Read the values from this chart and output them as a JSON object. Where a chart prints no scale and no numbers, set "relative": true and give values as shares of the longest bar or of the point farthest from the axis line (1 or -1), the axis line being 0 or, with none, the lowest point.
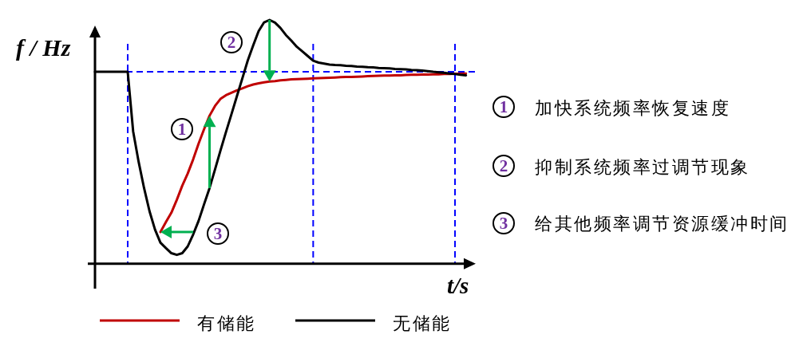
{
  "chart_data": {
    "type": "line",
    "relative": true,
    "xlabel": "t/s",
    "ylabel": "f / Hz",
    "legend": "bottom",
    "grid": "x",
    "categories": [
      null,
      null,
      null,
      null,
      null,
      null,
      null,
      null,
      null,
      null,
      null,
      null,
      null,
      null,
      null,
      null,
      null,
      null,
      null,
      null,
      null,
      null,
      null,
      null,
      null,
      null,
      null,
      null,
      null,
      null,
      null,
      null,
      null,
      null,
      null,
      null,
      null,
      null,
      null,
      null,
      null,
      null,
      null,
      null,
      null,
      null,
      null,
      null,
      null,
      null,
      null,
      null,
      null,
      null,
      null,
      null,
      null,
      null,
      null,
      null,
      null,
      null,
      null,
      null,
      null,
      null,
      null,
      null,
      null
    ],
    "series": [
      {
        "name": "有储能",
        "color": "#c00000",
        "values": [
          null,
          null,
          null,
          null,
          null,
          null,
          null,
          null,
          null,
          null,
          null,
          null,
          0.13,
          0.171,
          0.209,
          0.262,
          0.32,
          0.37,
          0.428,
          0.493,
          0.552,
          0.607,
          0.647,
          0.676,
          0.691,
          0.701,
          0.711,
          0.719,
          0.728,
          0.735,
          0.74,
          0.744,
          0.747,
          0.749,
          0.752,
          0.754,
          0.756,
          0.757,
          0.758,
          0.759,
          0.76,
          0.761,
          0.762,
          0.763,
          0.764,
          0.765,
          0.766,
          0.766,
          0.767,
          0.768,
          0.769,
          0.77,
          0.771,
          0.772,
          0.772,
          0.773,
          0.773,
          0.774,
          0.775,
          0.775,
          0.776,
          0.776,
          0.777,
          0.777,
          0.778,
          0.778,
          0.779,
          0.779,
          0.78
        ]
      },
      {
        "name": "无储能",
        "color": "#000000",
        "values": [
          0.787,
          0.787,
          0.787,
          0.787,
          0.787,
          0.787,
          0.787,
          0.542,
          0.418,
          0.31,
          0.215,
          0.14,
          0.086,
          0.064,
          0.043,
          0.036,
          0.043,
          0.071,
          0.12,
          0.176,
          0.244,
          0.31,
          0.386,
          0.464,
          0.539,
          0.612,
          0.686,
          0.759,
          0.833,
          0.895,
          0.954,
          0.99,
          1.0,
          0.989,
          0.967,
          0.938,
          0.915,
          0.89,
          0.871,
          0.852,
          0.833,
          0.825,
          0.821,
          0.817,
          0.815,
          0.814,
          0.812,
          0.811,
          0.809,
          0.808,
          0.806,
          0.805,
          0.803,
          0.802,
          0.801,
          0.799,
          0.798,
          0.797,
          0.795,
          0.794,
          0.792,
          0.79,
          0.787,
          0.785,
          0.783,
          0.78,
          0.778,
          0.775,
          0.773
        ]
      }
    ],
    "ref_lines": [
      {
        "axis": "y",
        "value": 0.787,
        "color": "#0000ff",
        "line_style": "dashed"
      }
    ],
    "annotations": [
      "2",
      "1",
      "3",
      "1",
      "加快系统频率恢复速度",
      "2",
      "抑制系统频率过调节现象",
      "3",
      "给其他频率调节资源缓冲时间"
    ]
  }
}
